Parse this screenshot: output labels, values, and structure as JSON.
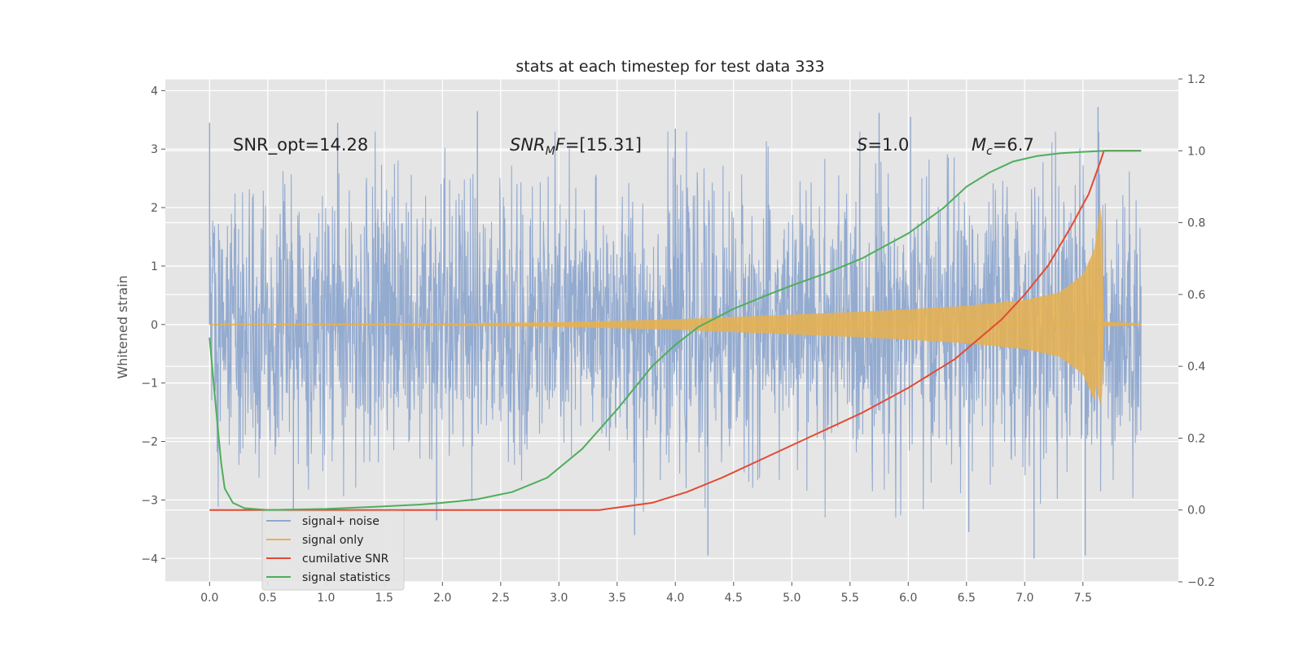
{
  "chart_data": {
    "type": "line",
    "title": "stats at each timestep for test data 333",
    "ylabel": "Whitened strain",
    "xlabel": "",
    "xlim": [
      -0.38,
      8.32
    ],
    "ylim": [
      -4.4,
      4.2
    ],
    "y2lim": [
      -0.2,
      1.2
    ],
    "x_ticks": [
      "0.0",
      "0.5",
      "1.0",
      "1.5",
      "2.0",
      "2.5",
      "3.0",
      "3.5",
      "4.0",
      "4.5",
      "5.0",
      "5.5",
      "6.0",
      "6.5",
      "7.0",
      "7.5"
    ],
    "y_ticks": [
      "−4",
      "−3",
      "−2",
      "−1",
      "0",
      "1",
      "2",
      "3",
      "4"
    ],
    "y2_ticks": [
      "−0.2",
      "0.0",
      "0.2",
      "0.4",
      "0.6",
      "0.8",
      "1.0",
      "1.2"
    ],
    "grid": true,
    "background": "#e5e5e5",
    "annotations": {
      "snr_opt": "SNR_opt=14.28",
      "snr_mf_base": "SNR",
      "snr_mf_sub": "M",
      "snr_mf_rest": "F=[15.31]",
      "s_base": "S",
      "s_rest": "=1.0",
      "mc_base": "M",
      "mc_sub": "c",
      "mc_rest": "=6.7"
    },
    "legend": {
      "location": "lower-left",
      "entries": [
        {
          "label": "signal+ noise",
          "color": "#8fa8cf"
        },
        {
          "label": "signal only",
          "color": "#e8b04d"
        },
        {
          "label": "cumilative SNR",
          "color": "#e24a33"
        },
        {
          "label": "signal statistics",
          "color": "#4eae5b"
        }
      ]
    },
    "series": [
      {
        "name": "signal+ noise",
        "axis": "left",
        "color": "#8fa8cf",
        "t_start": 0.0,
        "t_end": 8.0,
        "noise_sd": 1.15,
        "extremes_high": [
          [
            0.0,
            3.45
          ],
          [
            1.1,
            3.45
          ],
          [
            2.3,
            3.65
          ],
          [
            4.0,
            3.35
          ],
          [
            5.75,
            3.62
          ],
          [
            6.02,
            3.55
          ],
          [
            7.63,
            3.72
          ]
        ],
        "extremes_low": [
          [
            0.72,
            -3.25
          ],
          [
            1.95,
            -3.35
          ],
          [
            3.65,
            -3.6
          ],
          [
            4.28,
            -3.95
          ],
          [
            6.52,
            -3.55
          ],
          [
            7.08,
            -4.0
          ],
          [
            7.52,
            -3.95
          ]
        ]
      },
      {
        "name": "signal only",
        "axis": "left",
        "color": "#e8b04d",
        "envelope": {
          "x": [
            0.0,
            2.0,
            3.0,
            4.0,
            4.5,
            5.0,
            5.5,
            6.0,
            6.5,
            7.0,
            7.3,
            7.5,
            7.6,
            7.66,
            7.68,
            8.0
          ],
          "y": [
            0.01,
            0.02,
            0.04,
            0.09,
            0.13,
            0.17,
            0.21,
            0.26,
            0.32,
            0.42,
            0.55,
            0.85,
            1.3,
            2.2,
            0.05,
            0.02
          ]
        }
      },
      {
        "name": "cumilative SNR",
        "axis": "right",
        "color": "#e24a33",
        "x": [
          0.0,
          1.0,
          2.0,
          3.0,
          3.35,
          3.8,
          4.1,
          4.4,
          4.8,
          5.2,
          5.6,
          6.0,
          6.4,
          6.8,
          7.0,
          7.2,
          7.4,
          7.55,
          7.65,
          7.68,
          8.0
        ],
        "values": [
          0.0,
          0.0,
          0.0,
          0.0,
          0.0,
          0.02,
          0.05,
          0.09,
          0.15,
          0.21,
          0.27,
          0.34,
          0.42,
          0.53,
          0.6,
          0.68,
          0.79,
          0.88,
          0.97,
          1.0,
          1.0
        ]
      },
      {
        "name": "signal statistics",
        "axis": "right",
        "color": "#4eae5b",
        "x": [
          0.0,
          0.05,
          0.1,
          0.13,
          0.2,
          0.3,
          0.5,
          1.0,
          1.5,
          1.8,
          2.0,
          2.3,
          2.6,
          2.9,
          3.2,
          3.5,
          3.8,
          4.0,
          4.2,
          4.5,
          4.8,
          5.0,
          5.3,
          5.6,
          6.0,
          6.3,
          6.5,
          6.7,
          6.9,
          7.1,
          7.3,
          7.5,
          7.7,
          8.0
        ],
        "values": [
          0.48,
          0.3,
          0.13,
          0.06,
          0.02,
          0.005,
          0.0,
          0.003,
          0.01,
          0.015,
          0.02,
          0.03,
          0.05,
          0.09,
          0.17,
          0.28,
          0.4,
          0.46,
          0.51,
          0.56,
          0.6,
          0.625,
          0.66,
          0.7,
          0.77,
          0.84,
          0.9,
          0.94,
          0.97,
          0.985,
          0.993,
          0.997,
          1.0,
          1.0
        ]
      }
    ]
  }
}
